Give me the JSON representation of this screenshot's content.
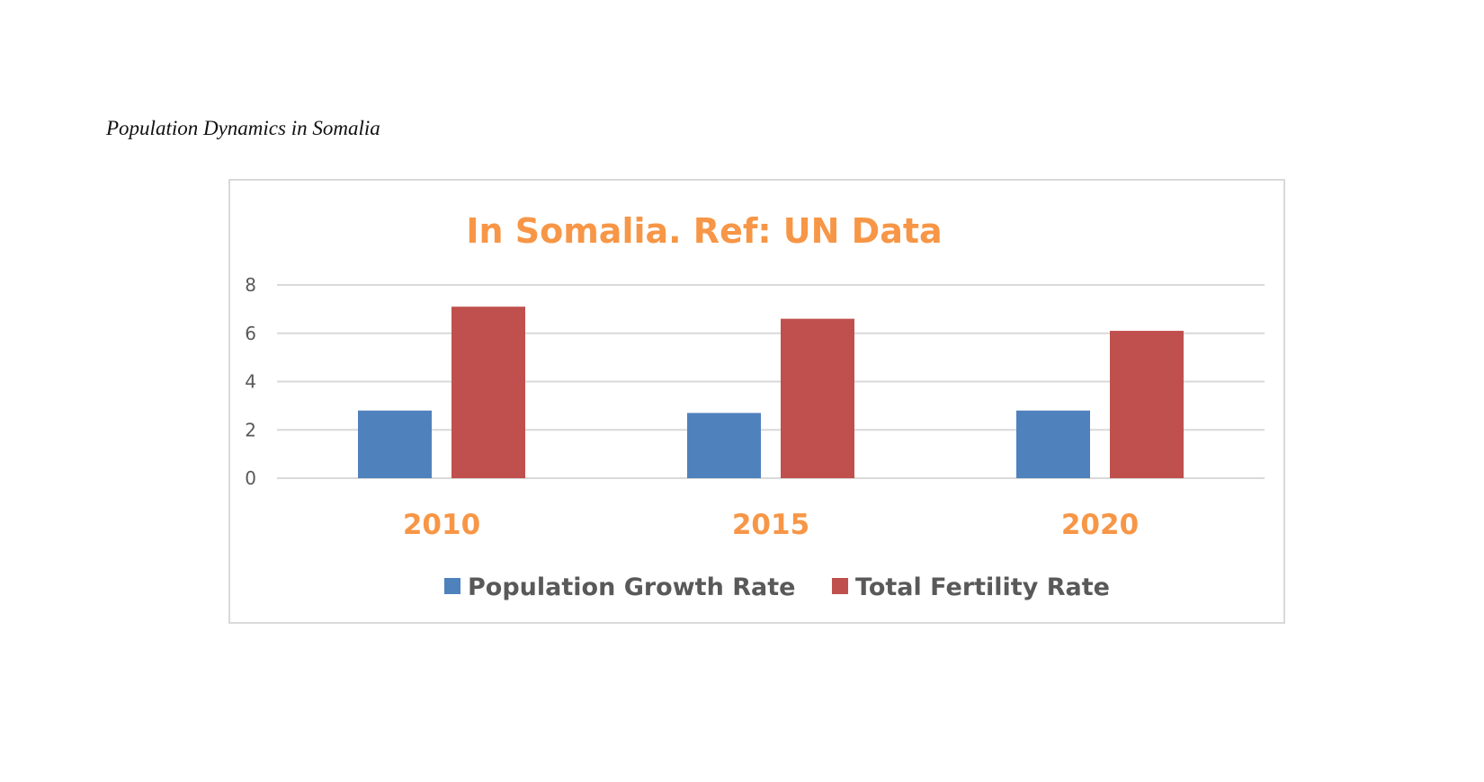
{
  "page": {
    "caption": "Population Dynamics in Somalia"
  },
  "chart_data": {
    "type": "bar",
    "title": "In Somalia. Ref: UN Data",
    "categories": [
      "2010",
      "2015",
      "2020"
    ],
    "series": [
      {
        "name": "Population Growth Rate",
        "color": "#4f81bd",
        "values": [
          2.8,
          2.7,
          2.8
        ]
      },
      {
        "name": "Total Fertility Rate",
        "color": "#c0504d",
        "values": [
          7.1,
          6.6,
          6.1
        ]
      }
    ],
    "xlabel": "",
    "ylabel": "",
    "ylim": [
      0,
      8
    ],
    "yticks": [
      "0",
      "2",
      "4",
      "6",
      "8"
    ],
    "grid": true,
    "legend_position": "bottom",
    "title_color": "#f79646",
    "category_label_color": "#f79646"
  }
}
